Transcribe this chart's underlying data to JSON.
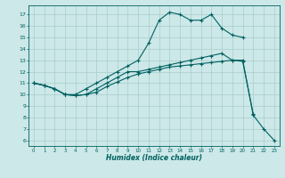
{
  "xlabel": "Humidex (Indice chaleur)",
  "bg_color": "#cce8e8",
  "line_color": "#006060",
  "grid_color": "#aacccc",
  "xlim": [
    -0.5,
    23.5
  ],
  "ylim": [
    5.5,
    17.8
  ],
  "yticks": [
    6,
    7,
    8,
    9,
    10,
    11,
    12,
    13,
    14,
    15,
    16,
    17
  ],
  "xticks": [
    0,
    1,
    2,
    3,
    4,
    5,
    6,
    7,
    8,
    9,
    10,
    11,
    12,
    13,
    14,
    15,
    16,
    17,
    18,
    19,
    20,
    21,
    22,
    23
  ],
  "line1_x": [
    0,
    1,
    2,
    3,
    4,
    5,
    6,
    7,
    8,
    9,
    10,
    11,
    12,
    13,
    14,
    15,
    16,
    17,
    18,
    19,
    20
  ],
  "line1_y": [
    11,
    10.8,
    10.5,
    10.0,
    10.0,
    10.5,
    11.0,
    11.5,
    12.0,
    12.5,
    13.0,
    14.5,
    16.5,
    17.2,
    17.0,
    16.5,
    16.5,
    17.0,
    15.8,
    15.2,
    15.0
  ],
  "line2_x": [
    0,
    1,
    2,
    3,
    4,
    5,
    6,
    7,
    8,
    9,
    10,
    11,
    12,
    13,
    14,
    15,
    16,
    17,
    18,
    19,
    20,
    21
  ],
  "line2_y": [
    11,
    10.8,
    10.5,
    10.0,
    9.9,
    10.0,
    10.5,
    11.0,
    11.5,
    12.0,
    12.0,
    12.2,
    12.4,
    12.6,
    12.8,
    13.0,
    13.2,
    13.4,
    13.6,
    13.0,
    12.9,
    8.3
  ],
  "line3_x": [
    0,
    1,
    2,
    3,
    4,
    5,
    6,
    7,
    8,
    9,
    10,
    11,
    12,
    13,
    14,
    15,
    16,
    17,
    18,
    19,
    20,
    21,
    22,
    23
  ],
  "line3_y": [
    11,
    10.8,
    10.5,
    10.0,
    9.9,
    10.0,
    10.2,
    10.7,
    11.1,
    11.5,
    11.8,
    12.0,
    12.2,
    12.4,
    12.5,
    12.6,
    12.7,
    12.8,
    12.9,
    13.0,
    13.0,
    8.2,
    7.0,
    6.0
  ]
}
